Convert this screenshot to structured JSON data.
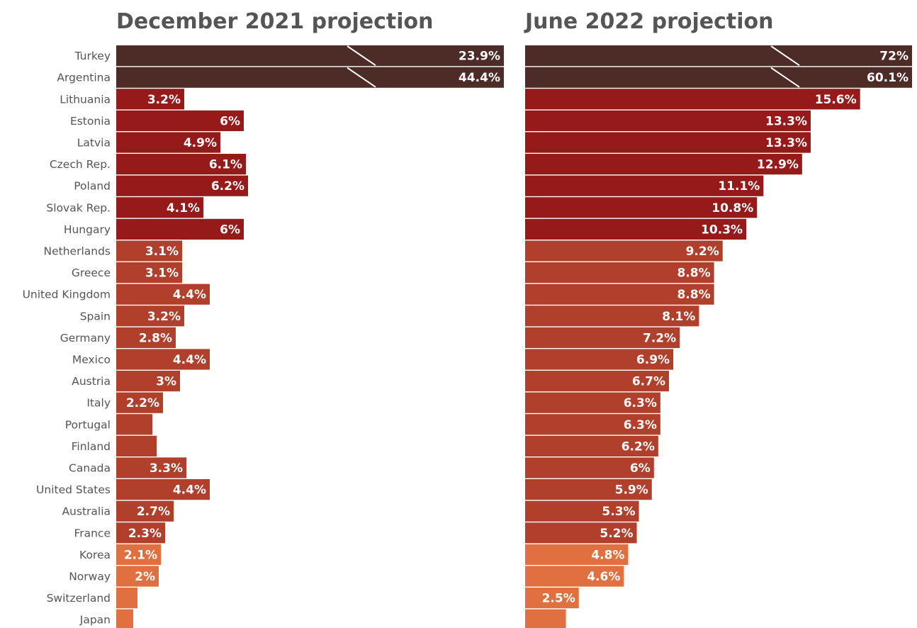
{
  "colors": {
    "extreme": "#4d2c28",
    "high": "#961a1a",
    "mid": "#b03f2b",
    "low": "#e0703f"
  },
  "chart_data": [
    {
      "type": "bar",
      "orientation": "horizontal",
      "title": "December 2021 projection",
      "categories": [
        "Turkey",
        "Argentina",
        "Lithuania",
        "Estonia",
        "Latvia",
        "Czech Rep.",
        "Poland",
        "Slovak Rep.",
        "Hungary",
        "Netherlands",
        "Greece",
        "United Kingdom",
        "Spain",
        "Germany",
        "Mexico",
        "Austria",
        "Italy",
        "Portugal",
        "Finland",
        "Canada",
        "United States",
        "Australia",
        "France",
        "Korea",
        "Norway",
        "Switzerland",
        "Japan"
      ],
      "values": [
        23.9,
        44.4,
        3.2,
        6,
        4.9,
        6.1,
        6.2,
        4.1,
        6,
        3.1,
        3.1,
        4.4,
        3.2,
        2.8,
        4.4,
        3,
        2.2,
        1.7,
        1.9,
        3.3,
        4.4,
        2.7,
        2.3,
        2.1,
        2,
        1,
        0.8
      ],
      "labels": [
        "23.9%",
        "44.4%",
        "3.2%",
        "6%",
        "4.9%",
        "6.1%",
        "6.2%",
        "4.1%",
        "6%",
        "3.1%",
        "3.1%",
        "4.4%",
        "3.2%",
        "2.8%",
        "4.4%",
        "3%",
        "2.2%",
        "",
        "",
        "3.3%",
        "4.4%",
        "2.7%",
        "2.3%",
        "2.1%",
        "2%",
        "",
        ""
      ],
      "truncated": [
        "Turkey",
        "Argentina"
      ],
      "groups": [
        "extreme",
        "extreme",
        "high",
        "high",
        "high",
        "high",
        "high",
        "high",
        "high",
        "mid",
        "mid",
        "mid",
        "mid",
        "mid",
        "mid",
        "mid",
        "mid",
        "mid",
        "mid",
        "mid",
        "mid",
        "mid",
        "mid",
        "low",
        "low",
        "low",
        "low"
      ]
    },
    {
      "type": "bar",
      "orientation": "horizontal",
      "title": "June 2022 projection",
      "categories": [
        "Turkey",
        "Argentina",
        "Lithuania",
        "Estonia",
        "Latvia",
        "Czech Rep.",
        "Poland",
        "Slovak Rep.",
        "Hungary",
        "Netherlands",
        "Greece",
        "United Kingdom",
        "Spain",
        "Germany",
        "Mexico",
        "Austria",
        "Italy",
        "Portugal",
        "Finland",
        "Canada",
        "United States",
        "Australia",
        "France",
        "Korea",
        "Norway",
        "Switzerland",
        "Japan"
      ],
      "values": [
        72,
        60.1,
        15.6,
        13.3,
        13.3,
        12.9,
        11.1,
        10.8,
        10.3,
        9.2,
        8.8,
        8.8,
        8.1,
        7.2,
        6.9,
        6.7,
        6.3,
        6.3,
        6.2,
        6,
        5.9,
        5.3,
        5.2,
        4.8,
        4.6,
        2.5,
        1.9
      ],
      "labels": [
        "72%",
        "60.1%",
        "15.6%",
        "13.3%",
        "13.3%",
        "12.9%",
        "11.1%",
        "10.8%",
        "10.3%",
        "9.2%",
        "8.8%",
        "8.8%",
        "8.1%",
        "7.2%",
        "6.9%",
        "6.7%",
        "6.3%",
        "6.3%",
        "6.2%",
        "6%",
        "5.9%",
        "5.3%",
        "5.2%",
        "4.8%",
        "4.6%",
        "2.5%",
        ""
      ],
      "truncated": [
        "Turkey",
        "Argentina"
      ],
      "groups": [
        "extreme",
        "extreme",
        "high",
        "high",
        "high",
        "high",
        "high",
        "high",
        "high",
        "mid",
        "mid",
        "mid",
        "mid",
        "mid",
        "mid",
        "mid",
        "mid",
        "mid",
        "mid",
        "mid",
        "mid",
        "mid",
        "mid",
        "low",
        "low",
        "low",
        "low"
      ]
    }
  ]
}
